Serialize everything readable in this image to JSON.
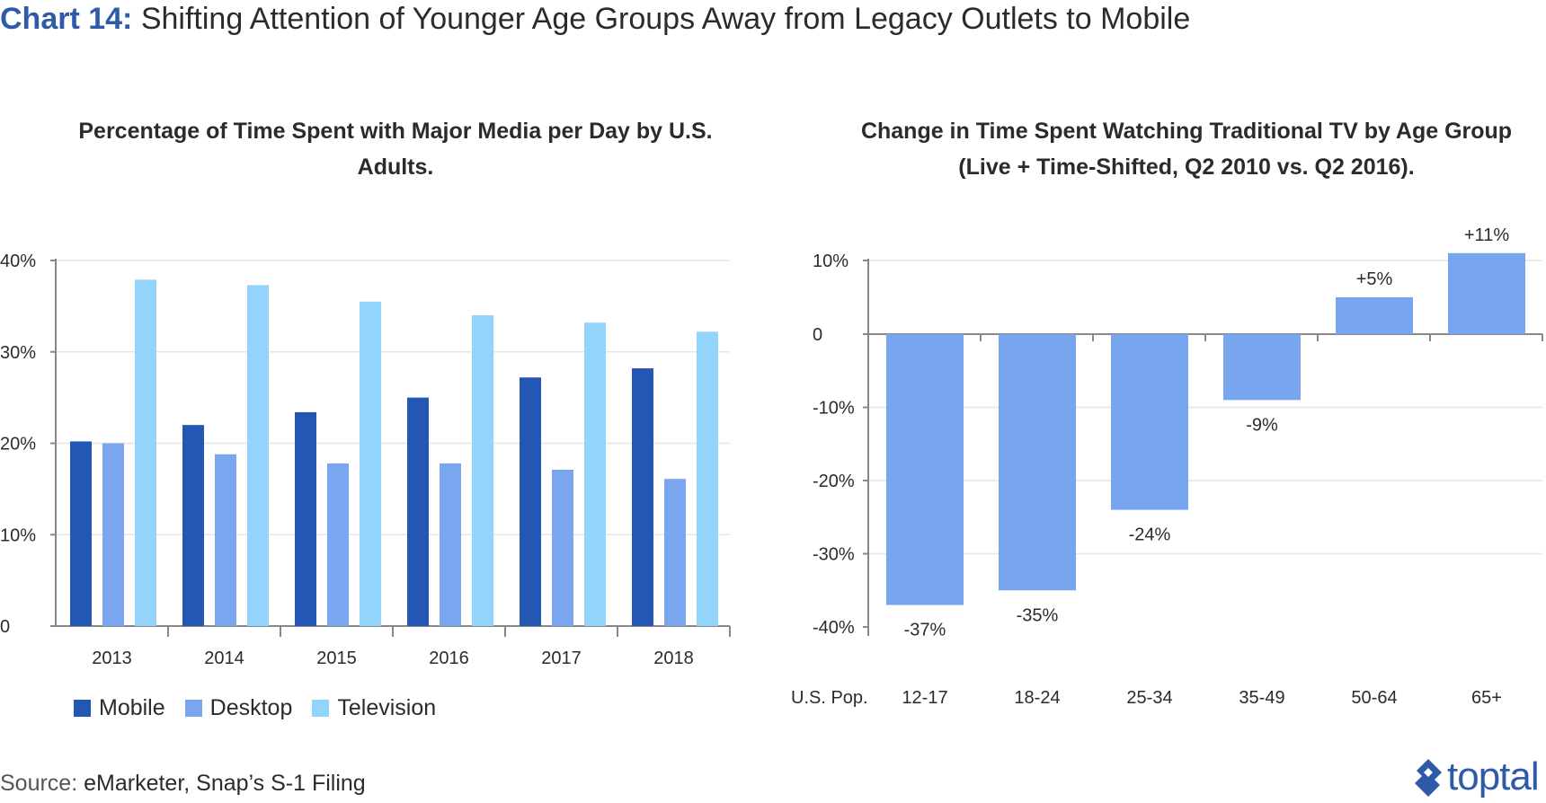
{
  "title": {
    "lead": "Chart 14:",
    "rest": "Shifting Attention of Younger Age Groups Away from Legacy Outlets to Mobile"
  },
  "source": {
    "label": "Source:",
    "text": "eMarketer, Snap’s S-1 Filing"
  },
  "logo": {
    "text": "toptal"
  },
  "colors": {
    "mobile": "#2457b3",
    "desktop": "#7aa6ef",
    "television": "#92d4fb",
    "tv_change": "#77a6ef",
    "grid": "#e6e6e6",
    "axis": "#888888",
    "title_accent": "#2e5aa8"
  },
  "chart_data": [
    {
      "type": "bar",
      "title": "Percentage of Time Spent with Major Media per Day by U.S. Adults.",
      "categories": [
        "2013",
        "2014",
        "2015",
        "2016",
        "2017",
        "2018"
      ],
      "series": [
        {
          "name": "Mobile",
          "values": [
            20.2,
            22.0,
            23.4,
            25.0,
            27.2,
            28.2
          ]
        },
        {
          "name": "Desktop",
          "values": [
            20.0,
            18.8,
            17.8,
            17.8,
            17.1,
            16.1
          ]
        },
        {
          "name": "Television",
          "values": [
            37.9,
            37.3,
            35.5,
            34.0,
            33.2,
            32.2
          ]
        }
      ],
      "ylim": [
        0,
        40
      ],
      "yticks": [
        "0",
        "10%",
        "20%",
        "30%",
        "40%"
      ],
      "xlabel": "",
      "ylabel": "",
      "grid": true,
      "legend": "bottom-left"
    },
    {
      "type": "bar",
      "title": "Change in Time Spent Watching Traditional TV by Age Group (Live + Time-Shifted, Q2 2010 vs. Q2 2016).",
      "x_prefix_label": "U.S. Pop.",
      "categories": [
        "12-17",
        "18-24",
        "25-34",
        "35-49",
        "50-64",
        "65+"
      ],
      "values": [
        -37,
        -35,
        -24,
        -9,
        5,
        11
      ],
      "data_labels": [
        "-37%",
        "-35%",
        "-24%",
        "-9%",
        "+5%",
        "+11%"
      ],
      "ylim": [
        -40,
        10
      ],
      "yticks": [
        "-40%",
        "-30%",
        "-20%",
        "-10%",
        "0",
        "10%"
      ],
      "xlabel": "",
      "ylabel": "",
      "grid": true
    }
  ]
}
